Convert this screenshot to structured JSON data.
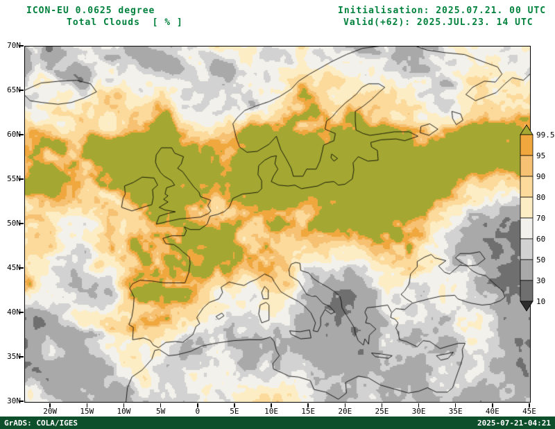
{
  "header": {
    "model_line": "ICON-EU 0.0625 degree",
    "variable_line": "Total Clouds  [ % ]",
    "init_line": "Initialisation: 2025.07.21. 00 UTC",
    "valid_line": "Valid(+62): 2025.JUL.23. 14 UTC",
    "text_color": "#00813c"
  },
  "map": {
    "extent": {
      "lon_min": -23.5,
      "lon_max": 45,
      "lat_min": 30,
      "lat_max": 70
    },
    "lat_ticks": [
      {
        "label": "70N",
        "lat": 70
      },
      {
        "label": "65N",
        "lat": 65
      },
      {
        "label": "60N",
        "lat": 60
      },
      {
        "label": "55N",
        "lat": 55
      },
      {
        "label": "50N",
        "lat": 50
      },
      {
        "label": "45N",
        "lat": 45
      },
      {
        "label": "40N",
        "lat": 40
      },
      {
        "label": "35N",
        "lat": 35
      },
      {
        "label": "30N",
        "lat": 30
      }
    ],
    "lon_ticks": [
      {
        "label": "20W",
        "lon": -20
      },
      {
        "label": "15W",
        "lon": -15
      },
      {
        "label": "10W",
        "lon": -10
      },
      {
        "label": "5W",
        "lon": -5
      },
      {
        "label": "0",
        "lon": 0
      },
      {
        "label": "5E",
        "lon": 5
      },
      {
        "label": "10E",
        "lon": 10
      },
      {
        "label": "15E",
        "lon": 15
      },
      {
        "label": "20E",
        "lon": 20
      },
      {
        "label": "25E",
        "lon": 25
      },
      {
        "label": "30E",
        "lon": 30
      },
      {
        "label": "35E",
        "lon": 35
      },
      {
        "label": "40E",
        "lon": 40
      },
      {
        "label": "45E",
        "lon": 45
      }
    ]
  },
  "legend": {
    "tick_labels": [
      "99.5",
      "95",
      "90",
      "80",
      "70",
      "60",
      "50",
      "30",
      "10"
    ],
    "thresholds": [
      99.5,
      95,
      90,
      80,
      70,
      60,
      50,
      30,
      10
    ],
    "colors_high_to_low": [
      "#a4a832",
      "#efa73e",
      "#f6c172",
      "#fbda9c",
      "#fdedc4",
      "#f2f1ec",
      "#d2d2d2",
      "#a9a9a9",
      "#6f6f6f",
      "#2d2d2d"
    ]
  },
  "footer": {
    "credit": "GrADS: COLA/IGES",
    "timestamp": "2025-07-21-04:21",
    "bar_color": "#0c4f2a"
  },
  "chart_data": {
    "type": "heatmap",
    "title": "Total Clouds [ % ]",
    "model": "ICON-EU 0.0625 degree",
    "initialisation": "2025.07.21. 00 UTC",
    "valid": "2025.JUL.23. 14 UTC (+62h)",
    "units": "%",
    "x_axis": {
      "label": "longitude",
      "range": [
        -23.5,
        45
      ],
      "ticks": [
        "20W",
        "15W",
        "10W",
        "5W",
        "0",
        "5E",
        "10E",
        "15E",
        "20E",
        "25E",
        "30E",
        "35E",
        "40E",
        "45E"
      ]
    },
    "y_axis": {
      "label": "latitude",
      "range": [
        30,
        70
      ],
      "ticks": [
        "70N",
        "65N",
        "60N",
        "55N",
        "50N",
        "45N",
        "40N",
        "35N",
        "30N"
      ]
    },
    "color_scale": {
      "thresholds": [
        99.5,
        95,
        90,
        80,
        70,
        60,
        50,
        30,
        10
      ],
      "colors_high_to_low": [
        "#a4a832",
        "#efa73e",
        "#f6c172",
        "#fbda9c",
        "#fdedc4",
        "#f2f1ec",
        "#d2d2d2",
        "#a9a9a9",
        "#6f6f6f",
        "#2d2d2d"
      ]
    },
    "pattern_summary": "Overcast (olive, >=99.5%) band from Ireland/UK across central Europe, Baltic and NE Europe; orange/yellow transition zones; mostly clear white/gray field over Mediterranean, North Africa, SW Atlantic and SE Russia with scattered dark patches"
  }
}
